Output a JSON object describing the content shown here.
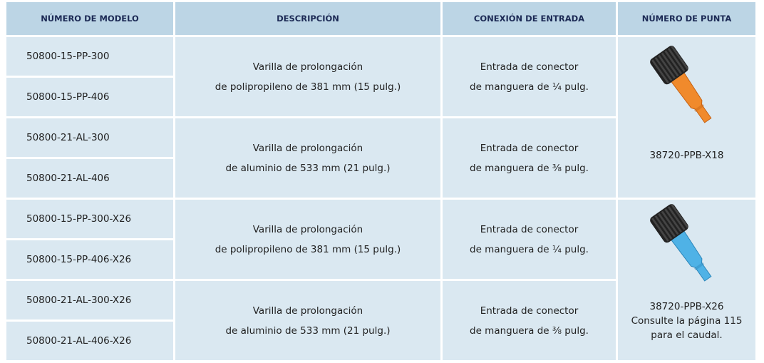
{
  "table": {
    "headers": [
      "NÚMERO DE MODELO",
      "DESCRIPCIÓN",
      "CONEXIÓN DE ENTRADA",
      "NÚMERO DE PUNTA"
    ],
    "groups": [
      {
        "models": [
          "50800-15-PP-300",
          "50800-15-PP-406"
        ],
        "description": [
          "Varilla de prolongación",
          "de polipropileno de 381 mm (15 pulg.)"
        ],
        "connection": [
          "Entrada de conector",
          "de manguera de ¼ pulg."
        ]
      },
      {
        "models": [
          "50800-21-AL-300",
          "50800-21-AL-406"
        ],
        "description": [
          "Varilla de prolongación",
          "de aluminio de 533 mm (21 pulg.)"
        ],
        "connection": [
          "Entrada de conector",
          "de manguera de ⅜ pulg."
        ]
      },
      {
        "models": [
          "50800-15-PP-300-X26",
          "50800-15-PP-406-X26"
        ],
        "description": [
          "Varilla de prolongación",
          "de polipropileno de 381 mm (15 pulg.)"
        ],
        "connection": [
          "Entrada de conector",
          "de manguera de ¼ pulg."
        ]
      },
      {
        "models": [
          "50800-21-AL-300-X26",
          "50800-21-AL-406-X26"
        ],
        "description": [
          "Varilla de prolongación",
          "de aluminio de 533 mm (21 pulg.)"
        ],
        "connection": [
          "Entrada de conector",
          "de manguera de ⅜ pulg."
        ]
      }
    ],
    "tips": [
      {
        "label": "38720-PPB-X18",
        "note": []
      },
      {
        "label": "38720-PPB-X26",
        "note": [
          "Consulte la página 115",
          "para el caudal."
        ]
      }
    ]
  }
}
